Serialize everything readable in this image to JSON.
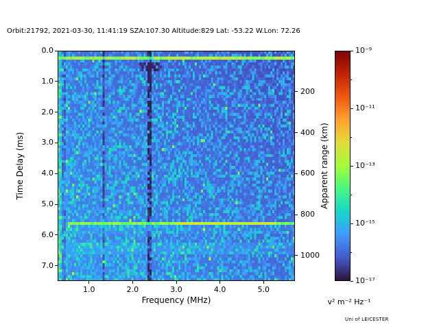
{
  "footer": {
    "credit": "Uni of LEICESTER"
  },
  "chart_data": {
    "type": "heatmap",
    "title": "Orbit:21792, 2021-03-30, 11:41:19 SZA:107.30 Altitude:829 Lat: -53.22 W.Lon: 72.26",
    "xlabel": "Frequency (MHz)",
    "ylabel_left": "Time Delay (ms)",
    "ylabel_right": "Apparent range (km)",
    "colorbar_label": "v² m⁻² Hz⁻¹",
    "colormap": "turbo",
    "x_range_mhz": [
      0.28,
      5.72
    ],
    "y_range_ms": [
      0.0,
      7.5
    ],
    "x_ticks": [
      1.0,
      2.0,
      3.0,
      4.0,
      5.0
    ],
    "y_ticks": [
      0.0,
      1.0,
      2.0,
      3.0,
      4.0,
      5.0,
      6.0,
      7.0
    ],
    "right_axis_km_per_ms": 149.9,
    "right_ticks_km": [
      200,
      400,
      600,
      800,
      1000
    ],
    "colorbar_ticks": [
      "10⁻⁹",
      "10⁻¹¹",
      "10⁻¹³",
      "10⁻¹⁵",
      "10⁻¹⁷"
    ],
    "value_range_log10": [
      -17,
      -9
    ],
    "notable_features": [
      "bright cyan-green horizontal echo line at ~0.25 ms delay spanning all frequencies",
      "bright green-cyan horizontal echo line at ~5.6 ms delay, strongest 3-5 MHz",
      "intense broadband low-frequency noise below ~0.55 MHz",
      "dark vertical interference lines near 0.42, 1.33 and 2.38 MHz",
      "speckled blue noise background, darkest at high frequency / low delay",
      "faint brighter band near 6.3-6.6 ms"
    ],
    "generation": {
      "seed": 1337,
      "grid_nx": 116,
      "grid_ny": 78,
      "background": {
        "base": 0.13,
        "freq_slope": -0.055,
        "delay_slope": 0.045,
        "noise_amp": 0.2,
        "speckle_prob": 0.045,
        "speckle_boost": 0.13
      },
      "low_freq_noise": {
        "f_max": 0.55,
        "boost": 0.1,
        "noise": 0.26
      },
      "features": [
        {
          "kind": "hline",
          "t_ms": 0.26,
          "half_ms": 0.05,
          "level": 0.5,
          "jitter": 0.09,
          "f_from": 0.28,
          "f_to": 5.72
        },
        {
          "kind": "hline",
          "t_ms": 5.6,
          "half_ms": 0.05,
          "level": 0.46,
          "jitter": 0.07,
          "f_from": 0.5,
          "f_to": 5.72
        },
        {
          "kind": "hline",
          "t_ms": 5.6,
          "half_ms": 0.05,
          "level": 0.55,
          "jitter": 0.05,
          "f_from": 3.0,
          "f_to": 5.3
        },
        {
          "kind": "hband",
          "t_from": 6.25,
          "t_to": 6.6,
          "boost": 0.035
        },
        {
          "kind": "hband",
          "t_from": 5.7,
          "t_to": 6.0,
          "boost": 0.02
        },
        {
          "kind": "vdark",
          "f_mhz": 0.42,
          "half_mhz": 0.03,
          "drop": 0.1
        },
        {
          "kind": "vdark",
          "f_mhz": 1.33,
          "half_mhz": 0.035,
          "drop": 0.09
        },
        {
          "kind": "vdark",
          "f_mhz": 2.38,
          "half_mhz": 0.045,
          "drop": 0.13
        },
        {
          "kind": "patch_dark",
          "f_from": 2.15,
          "f_to": 2.65,
          "t_from": 0.38,
          "t_to": 0.7,
          "drop": 0.1
        }
      ]
    }
  }
}
